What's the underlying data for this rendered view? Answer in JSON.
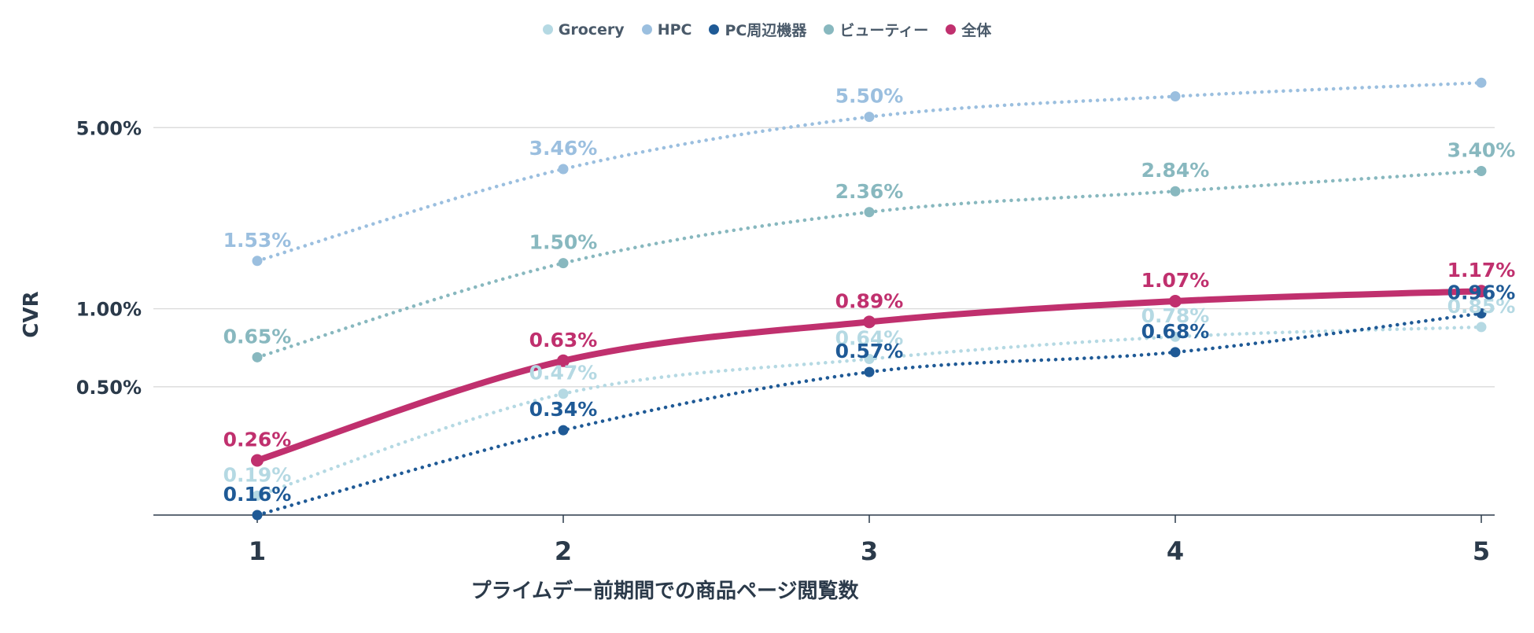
{
  "chart_data": {
    "type": "line",
    "xlabel": "プライムデー前期間での商品ページ閲覧数",
    "ylabel": "CVR",
    "yscale": "log",
    "ylim": [
      0.16,
      8.0
    ],
    "grid": true,
    "legend_position": "top-center",
    "x": [
      1,
      2,
      3,
      4,
      5
    ],
    "x_tick_labels": [
      "1",
      "2",
      "3",
      "4",
      "5"
    ],
    "y_ticks": [
      {
        "value": 0.5,
        "label": "0.50%"
      },
      {
        "value": 1.0,
        "label": "1.00%"
      },
      {
        "value": 5.0,
        "label": "5.00%"
      }
    ],
    "series": [
      {
        "name": "Grocery",
        "color": "#b5d9e3",
        "style": "dotted",
        "values": [
          0.19,
          0.47,
          0.64,
          0.78,
          0.85
        ],
        "labels": [
          "0.19%",
          "0.47%",
          "0.64%",
          "0.78%",
          "0.85%"
        ],
        "point_labels_shown": [
          true,
          true,
          true,
          true,
          true
        ]
      },
      {
        "name": "HPC",
        "color": "#9bbfdf",
        "style": "dotted",
        "values": [
          1.53,
          3.46,
          5.5,
          6.6,
          7.45
        ],
        "labels": [
          "1.53%",
          "3.46%",
          "5.50%",
          "",
          ""
        ],
        "point_labels_shown": [
          true,
          true,
          true,
          false,
          false
        ]
      },
      {
        "name": "PC周辺機器",
        "color": "#1f5a96",
        "style": "dotted",
        "values": [
          0.16,
          0.34,
          0.57,
          0.68,
          0.96
        ],
        "labels": [
          "0.16%",
          "0.34%",
          "0.57%",
          "0.68%",
          "0.96%"
        ],
        "point_labels_shown": [
          true,
          true,
          true,
          true,
          true
        ]
      },
      {
        "name": "ビューティー",
        "color": "#88b8bf",
        "style": "dotted",
        "values": [
          0.65,
          1.5,
          2.36,
          2.84,
          3.4
        ],
        "labels": [
          "0.65%",
          "1.50%",
          "2.36%",
          "2.84%",
          "3.40%"
        ],
        "point_labels_shown": [
          true,
          true,
          true,
          true,
          true
        ]
      },
      {
        "name": "全体",
        "color": "#c0306e",
        "style": "solid",
        "values": [
          0.26,
          0.63,
          0.89,
          1.07,
          1.17
        ],
        "labels": [
          "0.26%",
          "0.63%",
          "0.89%",
          "1.07%",
          "1.17%"
        ],
        "point_labels_shown": [
          true,
          true,
          true,
          true,
          true
        ]
      }
    ]
  }
}
